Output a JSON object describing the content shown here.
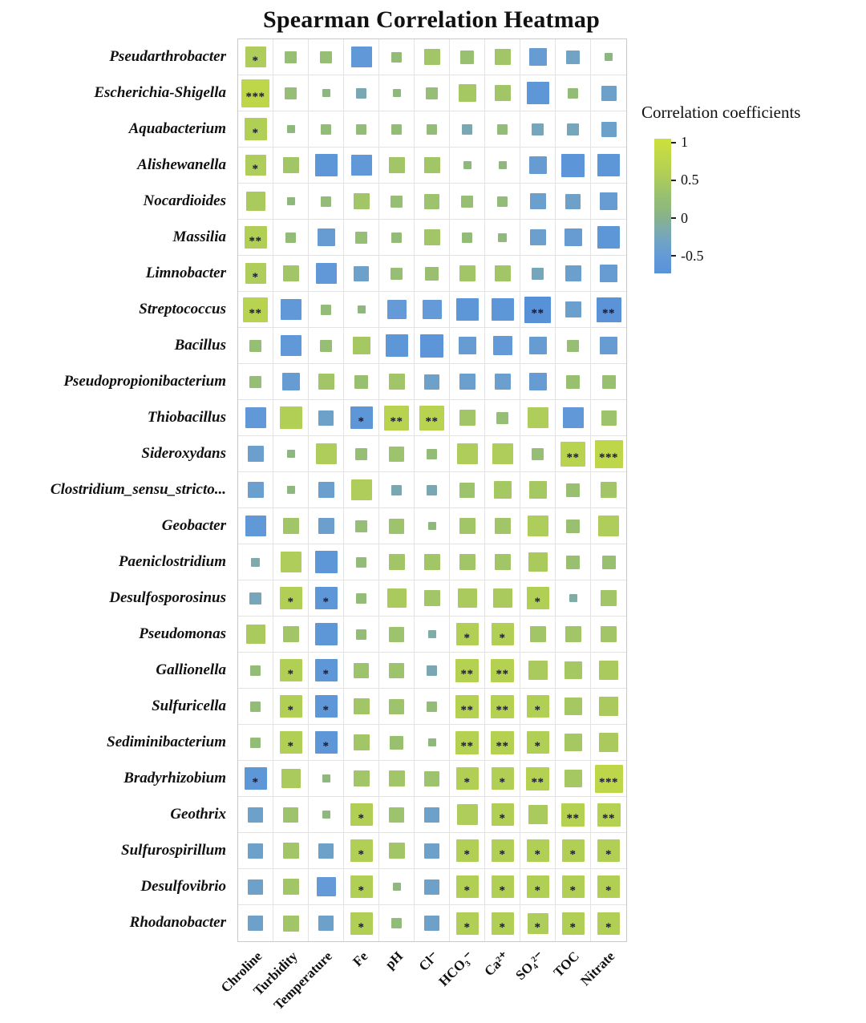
{
  "chart_data": {
    "type": "heatmap",
    "title": "Spearman Correlation Heatmap",
    "xlabel": "",
    "ylabel": "",
    "columns": [
      "Chroline",
      "Turbidity",
      "Temperature",
      "Fe",
      "pH",
      "Cl⁻",
      "HCO₃⁻",
      "Ca²⁺",
      "SO₄²⁻",
      "TOC",
      "Nitrate"
    ],
    "rows": [
      "Pseudarthrobacter",
      "Escherichia-Shigella",
      "Aquabacterium",
      "Alishewanella",
      "Nocardioides",
      "Massilia",
      "Limnobacter",
      "Streptococcus",
      "Bacillus",
      "Pseudopropionibacterium",
      "Thiobacillus",
      "Sideroxydans",
      "Clostridium_sensu_stricto...",
      "Geobacter",
      "Paeniclostridium",
      "Desulfosporosinus",
      "Pseudomonas",
      "Gallionella",
      "Sulfuricella",
      "Sediminibacterium",
      "Bradyrhizobium",
      "Geothrix",
      "Sulfurospirillum",
      "Desulfovibrio",
      "Rhodanobacter"
    ],
    "values": [
      [
        0.55,
        0.25,
        0.25,
        -0.55,
        0.2,
        0.4,
        0.3,
        0.4,
        -0.45,
        -0.3,
        0.1
      ],
      [
        0.8,
        0.25,
        0.1,
        -0.2,
        0.12,
        0.25,
        0.45,
        0.4,
        -0.6,
        0.2,
        -0.35
      ],
      [
        0.6,
        0.12,
        0.2,
        0.2,
        0.2,
        0.2,
        -0.2,
        0.2,
        -0.25,
        -0.25,
        -0.35
      ],
      [
        0.55,
        0.4,
        -0.6,
        -0.55,
        0.4,
        0.4,
        0.12,
        0.12,
        -0.45,
        -0.65,
        -0.6
      ],
      [
        0.5,
        0.12,
        0.2,
        0.4,
        0.25,
        0.35,
        0.25,
        0.2,
        -0.4,
        -0.35,
        -0.45
      ],
      [
        0.6,
        0.2,
        -0.45,
        0.25,
        0.2,
        0.4,
        0.2,
        0.15,
        -0.4,
        -0.45,
        -0.6
      ],
      [
        0.55,
        0.4,
        -0.55,
        -0.35,
        0.25,
        0.3,
        0.4,
        0.4,
        -0.25,
        -0.4,
        -0.45
      ],
      [
        0.7,
        -0.55,
        0.2,
        0.12,
        -0.5,
        -0.5,
        -0.6,
        -0.6,
        -0.75,
        -0.4,
        -0.7
      ],
      [
        0.25,
        -0.55,
        0.25,
        0.45,
        -0.6,
        -0.65,
        -0.45,
        -0.5,
        -0.45,
        0.25,
        -0.45
      ],
      [
        0.25,
        -0.45,
        0.4,
        0.3,
        0.4,
        -0.35,
        -0.4,
        -0.4,
        -0.45,
        0.3,
        0.3
      ],
      [
        -0.55,
        0.6,
        -0.35,
        -0.6,
        0.7,
        0.7,
        0.4,
        0.25,
        0.55,
        -0.55,
        0.35
      ],
      [
        -0.4,
        0.1,
        0.55,
        0.25,
        0.35,
        0.2,
        0.55,
        0.55,
        0.25,
        0.7,
        0.8
      ],
      [
        -0.4,
        0.12,
        -0.4,
        0.55,
        -0.2,
        -0.2,
        0.35,
        0.45,
        0.45,
        0.3,
        0.4
      ],
      [
        -0.55,
        0.4,
        -0.4,
        0.25,
        0.35,
        0.12,
        0.4,
        0.4,
        0.55,
        0.3,
        0.55
      ],
      [
        -0.15,
        0.55,
        -0.6,
        0.2,
        0.4,
        0.4,
        0.4,
        0.4,
        0.5,
        0.3,
        0.3
      ],
      [
        -0.25,
        0.6,
        -0.6,
        0.2,
        0.5,
        0.4,
        0.5,
        0.5,
        0.6,
        -0.12,
        0.4
      ],
      [
        0.5,
        0.4,
        -0.6,
        0.2,
        0.35,
        -0.12,
        0.6,
        0.6,
        0.4,
        0.4,
        0.4
      ],
      [
        0.2,
        0.6,
        -0.6,
        0.35,
        0.35,
        -0.2,
        0.65,
        0.65,
        0.5,
        0.45,
        0.5
      ],
      [
        0.2,
        0.6,
        -0.6,
        0.4,
        0.35,
        0.2,
        0.65,
        0.65,
        0.6,
        0.45,
        0.5
      ],
      [
        0.2,
        0.6,
        -0.6,
        0.4,
        0.3,
        0.12,
        0.65,
        0.65,
        0.6,
        0.45,
        0.5
      ],
      [
        -0.6,
        0.5,
        0.12,
        0.4,
        0.4,
        0.35,
        0.6,
        0.6,
        0.65,
        0.45,
        0.8
      ],
      [
        -0.35,
        0.35,
        0.12,
        0.6,
        0.35,
        -0.35,
        0.55,
        0.6,
        0.5,
        0.65,
        0.65
      ],
      [
        -0.35,
        0.4,
        -0.35,
        0.6,
        0.4,
        -0.35,
        0.6,
        0.6,
        0.6,
        0.6,
        0.6
      ],
      [
        -0.35,
        0.4,
        -0.5,
        0.6,
        0.12,
        -0.35,
        0.6,
        0.6,
        0.6,
        0.6,
        0.6
      ],
      [
        -0.35,
        0.4,
        -0.35,
        0.6,
        0.2,
        -0.35,
        0.6,
        0.6,
        0.55,
        0.6,
        0.6
      ]
    ],
    "stars": [
      [
        "*",
        "",
        "",
        "",
        "",
        "",
        "",
        "",
        "",
        "",
        ""
      ],
      [
        "***",
        "",
        "",
        "",
        "",
        "",
        "",
        "",
        "",
        "",
        ""
      ],
      [
        "*",
        "",
        "",
        "",
        "",
        "",
        "",
        "",
        "",
        "",
        ""
      ],
      [
        "*",
        "",
        "",
        "",
        "",
        "",
        "",
        "",
        "",
        "",
        ""
      ],
      [
        "",
        "",
        "",
        "",
        "",
        "",
        "",
        "",
        "",
        "",
        ""
      ],
      [
        "**",
        "",
        "",
        "",
        "",
        "",
        "",
        "",
        "",
        "",
        ""
      ],
      [
        "*",
        "",
        "",
        "",
        "",
        "",
        "",
        "",
        "",
        "",
        ""
      ],
      [
        "**",
        "",
        "",
        "",
        "",
        "",
        "",
        "",
        "**",
        "",
        "**"
      ],
      [
        "",
        "",
        "",
        "",
        "",
        "",
        "",
        "",
        "",
        "",
        ""
      ],
      [
        "",
        "",
        "",
        "",
        "",
        "",
        "",
        "",
        "",
        "",
        ""
      ],
      [
        "",
        "",
        "",
        "*",
        "**",
        "**",
        "",
        "",
        "",
        "",
        ""
      ],
      [
        "",
        "",
        "",
        "",
        "",
        "",
        "",
        "",
        "",
        "**",
        "***"
      ],
      [
        "",
        "",
        "",
        "",
        "",
        "",
        "",
        "",
        "",
        "",
        ""
      ],
      [
        "",
        "",
        "",
        "",
        "",
        "",
        "",
        "",
        "",
        "",
        ""
      ],
      [
        "",
        "",
        "",
        "",
        "",
        "",
        "",
        "",
        "",
        "",
        ""
      ],
      [
        "",
        "*",
        "*",
        "",
        "",
        "",
        "",
        "",
        "*",
        "",
        ""
      ],
      [
        "",
        "",
        "",
        "",
        "",
        "",
        "*",
        "*",
        "",
        "",
        ""
      ],
      [
        "",
        "*",
        "*",
        "",
        "",
        "",
        "**",
        "**",
        "",
        "",
        ""
      ],
      [
        "",
        "*",
        "*",
        "",
        "",
        "",
        "**",
        "**",
        "*",
        "",
        ""
      ],
      [
        "",
        "*",
        "*",
        "",
        "",
        "",
        "**",
        "**",
        "*",
        "",
        ""
      ],
      [
        "*",
        "",
        "",
        "",
        "",
        "",
        "*",
        "*",
        "**",
        "",
        "***"
      ],
      [
        "",
        "",
        "",
        "*",
        "",
        "",
        "",
        "*",
        "",
        "**",
        "**"
      ],
      [
        "",
        "",
        "",
        "*",
        "",
        "",
        "*",
        "*",
        "*",
        "*",
        "*"
      ],
      [
        "",
        "",
        "",
        "*",
        "",
        "",
        "*",
        "*",
        "*",
        "*",
        "*"
      ],
      [
        "",
        "",
        "",
        "*",
        "",
        "",
        "*",
        "*",
        "*",
        "*",
        "*"
      ]
    ],
    "legend": {
      "title": "Correlation coefficients",
      "ticks": [
        1,
        0.5,
        0,
        -0.5
      ],
      "tick_labels": [
        "1",
        "0.5",
        "0",
        "-0.5"
      ],
      "bar_value_top": 1.05,
      "bar_value_bottom": -0.73,
      "colormap": [
        [
          -0.8,
          "#5590d8"
        ],
        [
          -0.5,
          "#639ad7"
        ],
        [
          -0.3,
          "#72a3c4"
        ],
        [
          -0.15,
          "#7dabab"
        ],
        [
          0.0,
          "#88b18f"
        ],
        [
          0.1,
          "#8db780"
        ],
        [
          0.3,
          "#99c070"
        ],
        [
          0.6,
          "#b2cf55"
        ],
        [
          1.0,
          "#cadf3e"
        ]
      ]
    },
    "star_color": "#14142e",
    "grid_line_color": "#e3e3e3"
  }
}
